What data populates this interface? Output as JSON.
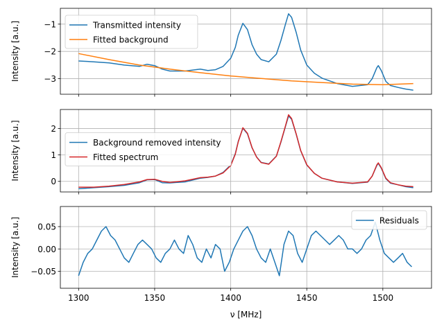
{
  "chart_data": [
    {
      "type": "line",
      "xlabel": "",
      "ylabel": "Intensity [a.u.]",
      "xlim": [
        1288,
        1532
      ],
      "ylim": [
        -3.57,
        -0.42
      ],
      "xticks": [
        1300,
        1350,
        1400,
        1450,
        1500
      ],
      "yticks": [
        -3,
        -2,
        -1
      ],
      "ytick_labels": [
        "−3",
        "−2",
        "−1"
      ],
      "show_xtick_labels": false,
      "grid": true,
      "legend": {
        "placement": "upper-left"
      },
      "series": [
        {
          "name": "Transmitted intensity",
          "color": "#1f77b4",
          "x": [
            1300,
            1310,
            1320,
            1330,
            1340,
            1345,
            1350,
            1355,
            1360,
            1370,
            1380,
            1385,
            1390,
            1395,
            1400,
            1403,
            1405,
            1408,
            1411,
            1414,
            1417,
            1420,
            1425,
            1430,
            1433,
            1436,
            1438,
            1440,
            1443,
            1446,
            1450,
            1455,
            1460,
            1470,
            1480,
            1490,
            1493,
            1496,
            1497,
            1499,
            1502,
            1505,
            1510,
            1515,
            1520
          ],
          "y": [
            -2.35,
            -2.38,
            -2.42,
            -2.5,
            -2.55,
            -2.47,
            -2.52,
            -2.65,
            -2.72,
            -2.72,
            -2.65,
            -2.7,
            -2.67,
            -2.55,
            -2.25,
            -1.85,
            -1.4,
            -0.97,
            -1.2,
            -1.75,
            -2.1,
            -2.3,
            -2.38,
            -2.1,
            -1.6,
            -1.0,
            -0.62,
            -0.75,
            -1.3,
            -1.95,
            -2.5,
            -2.8,
            -2.98,
            -3.18,
            -3.28,
            -3.22,
            -3.0,
            -2.6,
            -2.52,
            -2.7,
            -3.1,
            -3.25,
            -3.32,
            -3.38,
            -3.42
          ]
        },
        {
          "name": "Fitted background",
          "color": "#ff7f0e",
          "x": [
            1300,
            1320,
            1340,
            1360,
            1380,
            1400,
            1420,
            1440,
            1460,
            1480,
            1500,
            1520
          ],
          "y": [
            -2.08,
            -2.3,
            -2.5,
            -2.65,
            -2.78,
            -2.9,
            -2.99,
            -3.08,
            -3.14,
            -3.2,
            -3.22,
            -3.18
          ]
        }
      ]
    },
    {
      "type": "line",
      "xlabel": "",
      "ylabel": "Intensity [a.u.]",
      "xlim": [
        1288,
        1532
      ],
      "ylim": [
        -0.4,
        2.72
      ],
      "xticks": [
        1300,
        1350,
        1400,
        1450,
        1500
      ],
      "yticks": [
        0,
        1,
        2
      ],
      "ytick_labels": [
        "0",
        "1",
        "2"
      ],
      "show_xtick_labels": false,
      "grid": true,
      "legend": {
        "placement": "center-left"
      },
      "series": [
        {
          "name": "Background removed intensity",
          "color": "#1f77b4",
          "x": [
            1300,
            1310,
            1320,
            1330,
            1340,
            1345,
            1350,
            1355,
            1360,
            1370,
            1380,
            1385,
            1390,
            1395,
            1400,
            1403,
            1405,
            1408,
            1411,
            1414,
            1417,
            1420,
            1425,
            1430,
            1433,
            1436,
            1438,
            1440,
            1443,
            1446,
            1450,
            1455,
            1460,
            1470,
            1480,
            1490,
            1493,
            1496,
            1497,
            1499,
            1502,
            1505,
            1510,
            1515,
            1520
          ],
          "y": [
            -0.28,
            -0.24,
            -0.2,
            -0.15,
            -0.05,
            0.06,
            0.07,
            -0.05,
            -0.06,
            -0.02,
            0.12,
            0.15,
            0.2,
            0.34,
            0.62,
            1.05,
            1.52,
            2.01,
            1.8,
            1.27,
            0.93,
            0.72,
            0.66,
            0.96,
            1.48,
            2.08,
            2.47,
            2.35,
            1.79,
            1.16,
            0.62,
            0.3,
            0.12,
            -0.02,
            -0.08,
            -0.03,
            0.2,
            0.6,
            0.68,
            0.5,
            0.1,
            -0.07,
            -0.13,
            -0.2,
            -0.24
          ]
        },
        {
          "name": "Fitted spectrum",
          "color": "#d62728",
          "x": [
            1300,
            1310,
            1320,
            1330,
            1340,
            1345,
            1350,
            1355,
            1360,
            1370,
            1380,
            1385,
            1390,
            1395,
            1400,
            1403,
            1405,
            1408,
            1411,
            1414,
            1417,
            1420,
            1425,
            1430,
            1433,
            1436,
            1438,
            1440,
            1443,
            1446,
            1450,
            1455,
            1460,
            1470,
            1480,
            1490,
            1493,
            1496,
            1497,
            1499,
            1502,
            1505,
            1510,
            1515,
            1520
          ],
          "y": [
            -0.22,
            -0.22,
            -0.18,
            -0.12,
            -0.02,
            0.07,
            0.08,
            0.0,
            -0.04,
            0.02,
            0.14,
            0.16,
            0.2,
            0.32,
            0.6,
            1.03,
            1.5,
            2.03,
            1.82,
            1.28,
            0.92,
            0.71,
            0.65,
            0.95,
            1.5,
            2.1,
            2.52,
            2.38,
            1.8,
            1.17,
            0.63,
            0.3,
            0.12,
            -0.02,
            -0.07,
            -0.02,
            0.2,
            0.62,
            0.7,
            0.52,
            0.12,
            -0.05,
            -0.13,
            -0.18,
            -0.2
          ]
        }
      ]
    },
    {
      "type": "line",
      "xlabel": "ν [MHz]",
      "ylabel": "Intensity [a.u.]",
      "xlim": [
        1288,
        1532
      ],
      "ylim": [
        -0.088,
        0.095
      ],
      "xticks": [
        1300,
        1350,
        1400,
        1450,
        1500
      ],
      "xtick_labels": [
        "1300",
        "1350",
        "1400",
        "1450",
        "1500"
      ],
      "yticks": [
        -0.05,
        0.0,
        0.05
      ],
      "ytick_labels": [
        "−0.05",
        "0.00",
        "0.05"
      ],
      "show_xtick_labels": true,
      "grid": true,
      "legend": {
        "placement": "upper-right"
      },
      "series": [
        {
          "name": "Residuals",
          "color": "#1f77b4",
          "x": [
            1300,
            1303,
            1306,
            1309,
            1312,
            1315,
            1318,
            1321,
            1324,
            1327,
            1330,
            1333,
            1336,
            1339,
            1342,
            1345,
            1348,
            1351,
            1354,
            1357,
            1360,
            1363,
            1366,
            1369,
            1372,
            1375,
            1378,
            1381,
            1384,
            1387,
            1390,
            1393,
            1396,
            1399,
            1402,
            1405,
            1408,
            1411,
            1414,
            1417,
            1420,
            1423,
            1426,
            1429,
            1432,
            1435,
            1438,
            1441,
            1444,
            1447,
            1450,
            1453,
            1456,
            1459,
            1462,
            1465,
            1468,
            1471,
            1474,
            1477,
            1480,
            1483,
            1486,
            1489,
            1492,
            1495,
            1498,
            1501,
            1504,
            1507,
            1510,
            1513,
            1516,
            1519
          ],
          "y": [
            -0.06,
            -0.03,
            -0.01,
            0.0,
            0.02,
            0.04,
            0.05,
            0.03,
            0.02,
            0.0,
            -0.02,
            -0.03,
            -0.01,
            0.01,
            0.02,
            0.01,
            0.0,
            -0.02,
            -0.03,
            -0.01,
            0.0,
            0.02,
            0.0,
            -0.01,
            0.03,
            0.01,
            -0.02,
            -0.03,
            0.0,
            -0.02,
            0.01,
            0.0,
            -0.05,
            -0.03,
            0.0,
            0.02,
            0.04,
            0.05,
            0.03,
            0.0,
            -0.02,
            -0.03,
            0.0,
            -0.03,
            -0.06,
            0.01,
            0.04,
            0.03,
            -0.01,
            -0.03,
            0.0,
            0.03,
            0.04,
            0.03,
            0.02,
            0.01,
            0.02,
            0.03,
            0.02,
            0.0,
            0.0,
            -0.01,
            0.0,
            0.02,
            0.03,
            0.06,
            0.02,
            -0.01,
            -0.02,
            -0.03,
            -0.02,
            -0.01,
            -0.03,
            -0.04
          ]
        }
      ]
    }
  ]
}
